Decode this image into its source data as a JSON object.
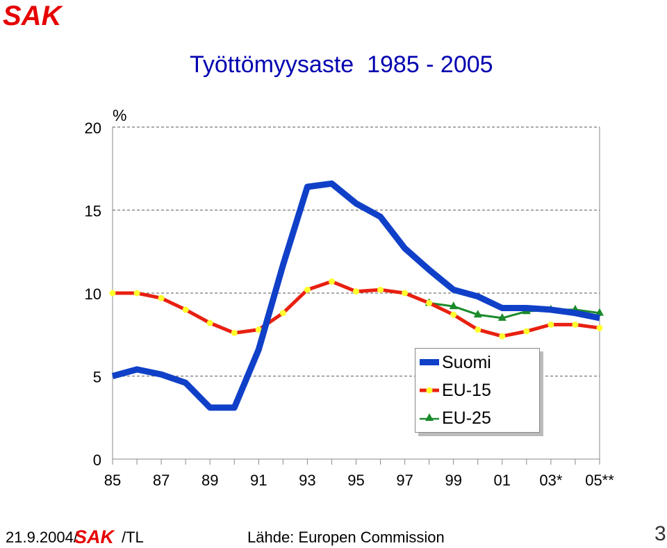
{
  "brand": {
    "logo_text": "SAK"
  },
  "title": "Työttömyysaste  1985 - 2005",
  "footer": {
    "date": "21.9.2004/",
    "suffix": "/TL",
    "source": "Lähde: Europen Commission",
    "page_number": "3"
  },
  "colors": {
    "suomi": "#1040c8",
    "eu15": "#e82010",
    "eu15_marker": "#ffff30",
    "eu25": "#1a8a2a",
    "title": "#0000b0",
    "logo": "#e60000"
  },
  "chart_data": {
    "type": "line",
    "title": "Työttömyysaste  1985 - 2005",
    "ylabel": "%",
    "ylim": [
      0,
      20
    ],
    "yticks": [
      "0",
      "5",
      "10",
      "15",
      "20"
    ],
    "x": [
      1985,
      1986,
      1987,
      1988,
      1989,
      1990,
      1991,
      1992,
      1993,
      1994,
      1995,
      1996,
      1997,
      1998,
      1999,
      2000,
      2001,
      2002,
      2003,
      2004,
      2005
    ],
    "xtick_labels": [
      "85",
      "87",
      "89",
      "91",
      "93",
      "95",
      "97",
      "99",
      "01",
      "03*",
      "05**"
    ],
    "grid": true,
    "legend_position": "bottom-right",
    "series": [
      {
        "name": "Suomi",
        "marker": "none",
        "x": [
          1985,
          1986,
          1987,
          1988,
          1989,
          1990,
          1991,
          1992,
          1993,
          1994,
          1995,
          1996,
          1997,
          1998,
          1999,
          2000,
          2001,
          2002,
          2003,
          2004,
          2005
        ],
        "values": [
          5.0,
          5.4,
          5.1,
          4.6,
          3.1,
          3.1,
          6.6,
          11.7,
          16.4,
          16.6,
          15.4,
          14.6,
          12.7,
          11.4,
          10.2,
          9.8,
          9.1,
          9.1,
          9.0,
          8.8,
          8.5
        ]
      },
      {
        "name": "EU-15",
        "marker": "circle",
        "x": [
          1985,
          1986,
          1987,
          1988,
          1989,
          1990,
          1991,
          1992,
          1993,
          1994,
          1995,
          1996,
          1997,
          1998,
          1999,
          2000,
          2001,
          2002,
          2003,
          2004,
          2005
        ],
        "values": [
          10.0,
          10.0,
          9.7,
          9.0,
          8.2,
          7.6,
          7.8,
          8.8,
          10.2,
          10.7,
          10.1,
          10.2,
          10.0,
          9.4,
          8.7,
          7.8,
          7.4,
          7.7,
          8.1,
          8.1,
          7.9
        ]
      },
      {
        "name": "EU-25",
        "marker": "triangle",
        "x": [
          1998,
          1999,
          2000,
          2001,
          2002,
          2003,
          2004,
          2005
        ],
        "values": [
          9.4,
          9.2,
          8.7,
          8.5,
          8.9,
          9.0,
          9.0,
          8.8
        ]
      }
    ]
  }
}
